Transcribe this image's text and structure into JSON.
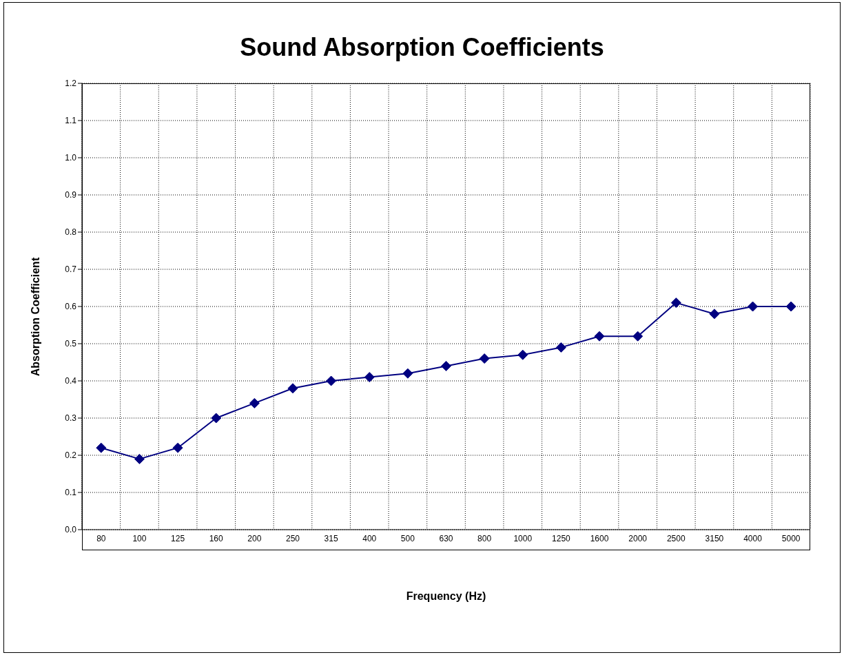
{
  "chart_data": {
    "type": "line",
    "title": "Sound Absorption Coefficients",
    "xlabel": "Frequency (Hz)",
    "ylabel": "Absorption Coefficient",
    "categories": [
      "80",
      "100",
      "125",
      "160",
      "200",
      "250",
      "315",
      "400",
      "500",
      "630",
      "800",
      "1000",
      "1250",
      "1600",
      "2000",
      "2500",
      "3150",
      "4000",
      "5000"
    ],
    "series": [
      {
        "color": "#000080",
        "values": [
          0.22,
          0.19,
          0.22,
          0.3,
          0.34,
          0.38,
          0.4,
          0.41,
          0.42,
          0.44,
          0.46,
          0.47,
          0.49,
          0.52,
          0.52,
          0.61,
          0.58,
          0.6,
          0.6
        ]
      }
    ],
    "ylim": [
      0,
      1.2
    ],
    "yticks": [
      {
        "value": 0,
        "label": "0.0"
      },
      {
        "value": 0.1,
        "label": "0.1"
      },
      {
        "value": 0.2,
        "label": "0.2"
      },
      {
        "value": 0.3,
        "label": "0.3"
      },
      {
        "value": 0.4,
        "label": "0.4"
      },
      {
        "value": 0.5,
        "label": "0.5"
      },
      {
        "value": 0.6,
        "label": "0.6"
      },
      {
        "value": 0.7,
        "label": "0.7"
      },
      {
        "value": 0.8,
        "label": "0.8"
      },
      {
        "value": 0.9,
        "label": "0.9"
      },
      {
        "value": 1,
        "label": "1.0"
      },
      {
        "value": 1.1,
        "label": "1.1"
      },
      {
        "value": 1.2,
        "label": "1.2"
      }
    ],
    "grid": true,
    "legend": false,
    "marker": "diamond",
    "line_style": "solid"
  }
}
